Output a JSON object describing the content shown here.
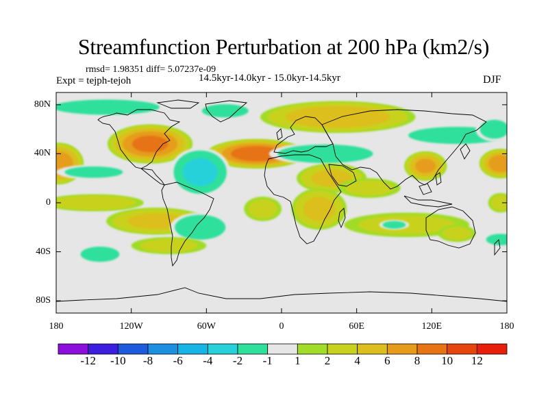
{
  "title": "Streamfunction Perturbation at 200 hPa (km2/s)",
  "stats": "rmsd= 1.98351 diff= 5.07237e-09",
  "experiment": "Expt = tejph-tejoh",
  "period": "14.5kyr-14.0kyr - 15.0kyr-14.5kyr",
  "season": "DJF",
  "map": {
    "lon_range": [
      -180,
      180
    ],
    "lat_range": [
      -90,
      90
    ],
    "x_ticks": [
      {
        "value": -180,
        "label": "180"
      },
      {
        "value": -120,
        "label": "120W"
      },
      {
        "value": -60,
        "label": "60W"
      },
      {
        "value": 0,
        "label": "0"
      },
      {
        "value": 60,
        "label": "60E"
      },
      {
        "value": 120,
        "label": "120E"
      },
      {
        "value": 180,
        "label": "180"
      }
    ],
    "y_ticks": [
      {
        "value": 80,
        "label": "80N"
      },
      {
        "value": 40,
        "label": "40N"
      },
      {
        "value": 0,
        "label": "0"
      },
      {
        "value": -40,
        "label": "40S"
      },
      {
        "value": -80,
        "label": "80S"
      }
    ],
    "anomalies": [
      {
        "name": "n-pacific-west-high",
        "lon": -178,
        "lat": 32,
        "rx": 20,
        "ry": 17,
        "value": 7
      },
      {
        "name": "n-america-high",
        "lon": -105,
        "lat": 48,
        "rx": 34,
        "ry": 16,
        "value": 8
      },
      {
        "name": "n-atlantic-high",
        "lon": -20,
        "lat": 40,
        "rx": 40,
        "ry": 12,
        "value": 9
      },
      {
        "name": "siberia-high",
        "lon": 45,
        "lat": 70,
        "rx": 62,
        "ry": 13,
        "value": 5
      },
      {
        "name": "arctic-america-low",
        "lon": -140,
        "lat": 78,
        "rx": 55,
        "ry": 8,
        "value": -2
      },
      {
        "name": "greenland-low",
        "lon": -45,
        "lat": 75,
        "rx": 24,
        "ry": 7,
        "value": -2
      },
      {
        "name": "caribbean-low",
        "lon": -65,
        "lat": 25,
        "rx": 24,
        "ry": 20,
        "value": -4
      },
      {
        "name": "pacific-tropic-low",
        "lon": -150,
        "lat": 25,
        "rx": 30,
        "ry": 6,
        "value": -2
      },
      {
        "name": "europe-asia-low",
        "lon": 35,
        "lat": 40,
        "rx": 45,
        "ry": 9,
        "value": -3
      },
      {
        "name": "asia-ne-low",
        "lon": 140,
        "lat": 55,
        "rx": 50,
        "ry": 9,
        "value": -2
      },
      {
        "name": "n-pacific-east-low",
        "lon": 170,
        "lat": 60,
        "rx": 15,
        "ry": 10,
        "value": -2
      },
      {
        "name": "arabia-high",
        "lon": 40,
        "lat": 20,
        "rx": 28,
        "ry": 12,
        "value": 4
      },
      {
        "name": "india-high",
        "lon": 70,
        "lat": 12,
        "rx": 25,
        "ry": 8,
        "value": 2
      },
      {
        "name": "china-high",
        "lon": 115,
        "lat": 30,
        "rx": 17,
        "ry": 12,
        "value": 6
      },
      {
        "name": "e-africa-high",
        "lon": 30,
        "lat": -5,
        "rx": 22,
        "ry": 17,
        "value": 4
      },
      {
        "name": "s-indian-ocean-high",
        "lon": 100,
        "lat": -18,
        "rx": 50,
        "ry": 10,
        "value": 2
      },
      {
        "name": "indian-ocean-low",
        "lon": 90,
        "lat": -18,
        "rx": 12,
        "ry": 4,
        "value": -2
      },
      {
        "name": "tropical-pacific-high",
        "lon": -150,
        "lat": 0,
        "rx": 40,
        "ry": 7,
        "value": 3
      },
      {
        "name": "s-pacific-high",
        "lon": -100,
        "lat": -15,
        "rx": 40,
        "ry": 11,
        "value": 4
      },
      {
        "name": "s-america-low",
        "lon": -65,
        "lat": -20,
        "rx": 24,
        "ry": 12,
        "value": -3
      },
      {
        "name": "s-pacific-low-1",
        "lon": -145,
        "lat": -42,
        "rx": 20,
        "ry": 8,
        "value": -2
      },
      {
        "name": "s-pacific-high-2",
        "lon": -90,
        "lat": -35,
        "rx": 30,
        "ry": 7,
        "value": 2
      },
      {
        "name": "atlantic-high",
        "lon": -15,
        "lat": -5,
        "rx": 15,
        "ry": 10,
        "value": 2
      },
      {
        "name": "sw-pacific-high",
        "lon": 140,
        "lat": -25,
        "rx": 15,
        "ry": 7,
        "value": 2
      },
      {
        "name": "nz-low",
        "lon": 175,
        "lat": -30,
        "rx": 15,
        "ry": 6,
        "value": -2
      },
      {
        "name": "e-pacific-high",
        "lon": 175,
        "lat": 0,
        "rx": 10,
        "ry": 8,
        "value": 2
      },
      {
        "name": "asia-far-east-high",
        "lon": 175,
        "lat": 32,
        "rx": 17,
        "ry": 12,
        "value": 7
      }
    ]
  },
  "colorbar": {
    "colors": [
      "#8c0fdc",
      "#3c1ede",
      "#1e5adc",
      "#1d8fe0",
      "#17b4e6",
      "#26d1d9",
      "#2ee09c",
      "#e6e6e6",
      "#a0dc28",
      "#c8d21e",
      "#dcbe1e",
      "#e69c1a",
      "#e67314",
      "#e6460e",
      "#e61e0a"
    ],
    "labels": [
      "-12",
      "-10",
      "-8",
      "-6",
      "-4",
      "-2",
      "-1",
      "1",
      "2",
      "4",
      "6",
      "8",
      "10",
      "12"
    ],
    "levels": [
      -12,
      -10,
      -8,
      -6,
      -4,
      -2,
      -1,
      1,
      2,
      4,
      6,
      8,
      10,
      12
    ]
  }
}
